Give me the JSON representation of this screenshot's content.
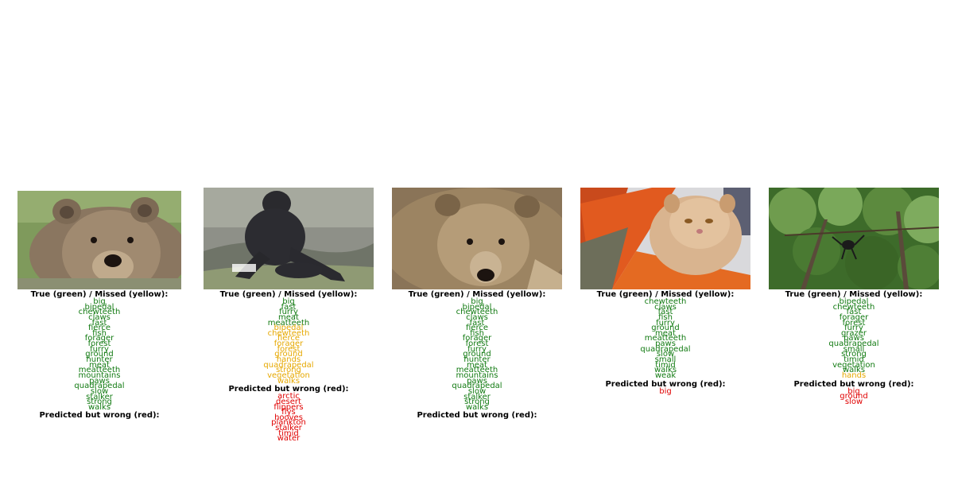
{
  "panels": [
    {
      "photo": "brown-bear-face",
      "true_header": "True (green) / Missed (yellow):",
      "true_attrs": [
        "big",
        "bipedal",
        "chewteeth",
        "claws",
        "fast",
        "fierce",
        "fish",
        "forager",
        "forest",
        "furry",
        "ground",
        "hunter",
        "meat",
        "meatteeth",
        "mountains",
        "paws",
        "quadrapedal",
        "slow",
        "stalker",
        "strong",
        "walks"
      ],
      "missed_attrs": [],
      "wrong_header": "Predicted but wrong (red):",
      "wrong_attrs": []
    },
    {
      "photo": "gorilla-on-rocks",
      "true_header": "True (green) / Missed (yellow):",
      "true_attrs": [
        "big",
        "fast",
        "furry",
        "meat",
        "meatteeth"
      ],
      "missed_attrs": [
        "bipedal",
        "chewteeth",
        "fierce",
        "forager",
        "forest",
        "ground",
        "hands",
        "quadrapedal",
        "strong",
        "vegetation",
        "walks"
      ],
      "wrong_header": "Predicted but wrong (red):",
      "wrong_attrs": [
        "arctic",
        "desert",
        "flippers",
        "flys",
        "hooves",
        "plankton",
        "stalker",
        "timid",
        "water"
      ]
    },
    {
      "photo": "brown-bear-closeup",
      "true_header": "True (green) / Missed (yellow):",
      "true_attrs": [
        "big",
        "bipedal",
        "chewteeth",
        "claws",
        "fast",
        "fierce",
        "fish",
        "forager",
        "forest",
        "furry",
        "ground",
        "hunter",
        "meat",
        "meatteeth",
        "mountains",
        "paws",
        "quadrapedal",
        "slow",
        "stalker",
        "strong",
        "walks"
      ],
      "missed_attrs": [],
      "wrong_header": "Predicted but wrong (red):",
      "wrong_attrs": []
    },
    {
      "photo": "persian-cat",
      "true_header": "True (green) / Missed (yellow):",
      "true_attrs": [
        "chewteeth",
        "claws",
        "fast",
        "fish",
        "furry",
        "ground",
        "meat",
        "meatteeth",
        "paws",
        "quadrapedal",
        "slow",
        "small",
        "timid",
        "walks",
        "weak"
      ],
      "missed_attrs": [],
      "wrong_header": "Predicted but wrong (red):",
      "wrong_attrs": [
        "big"
      ]
    },
    {
      "photo": "spider-monkey-in-trees",
      "true_header": "True (green) / Missed (yellow):",
      "true_attrs": [
        "bipedal",
        "chewteeth",
        "fast",
        "forager",
        "forest",
        "furry",
        "grazer",
        "paws",
        "quadrapedal",
        "small",
        "strong",
        "timid",
        "vegetation",
        "walks"
      ],
      "missed_attrs": [
        "hands"
      ],
      "wrong_header": "Predicted but wrong (red):",
      "wrong_attrs": [
        "big",
        "ground",
        "slow"
      ]
    }
  ]
}
